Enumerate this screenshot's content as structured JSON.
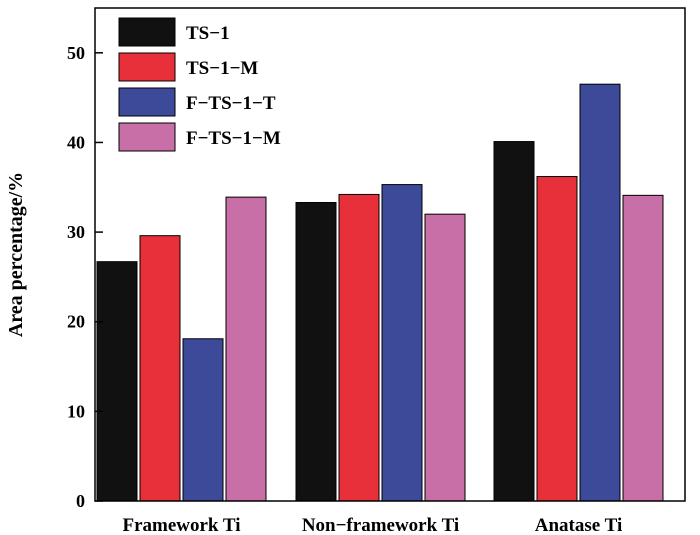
{
  "chart_data": {
    "type": "bar",
    "title": "",
    "xlabel": "",
    "ylabel": "Area percentage/%",
    "ylim": [
      0,
      55
    ],
    "yticks": [
      0,
      10,
      20,
      30,
      40,
      50
    ],
    "grid": false,
    "legend_position": "top-left",
    "categories": [
      "Framework Ti",
      "Non−framework Ti",
      "Anatase Ti"
    ],
    "series": [
      {
        "name": "TS−1",
        "color": "#111111",
        "values": [
          26.7,
          33.3,
          40.1
        ]
      },
      {
        "name": "TS−1−M",
        "color": "#e8303a",
        "values": [
          29.6,
          34.2,
          36.2
        ]
      },
      {
        "name": "F−TS−1−T",
        "color": "#3d4a9a",
        "values": [
          18.1,
          35.3,
          46.5
        ]
      },
      {
        "name": "F−TS−1−M",
        "color": "#c86fa8",
        "values": [
          33.9,
          32.0,
          34.1
        ]
      }
    ]
  }
}
